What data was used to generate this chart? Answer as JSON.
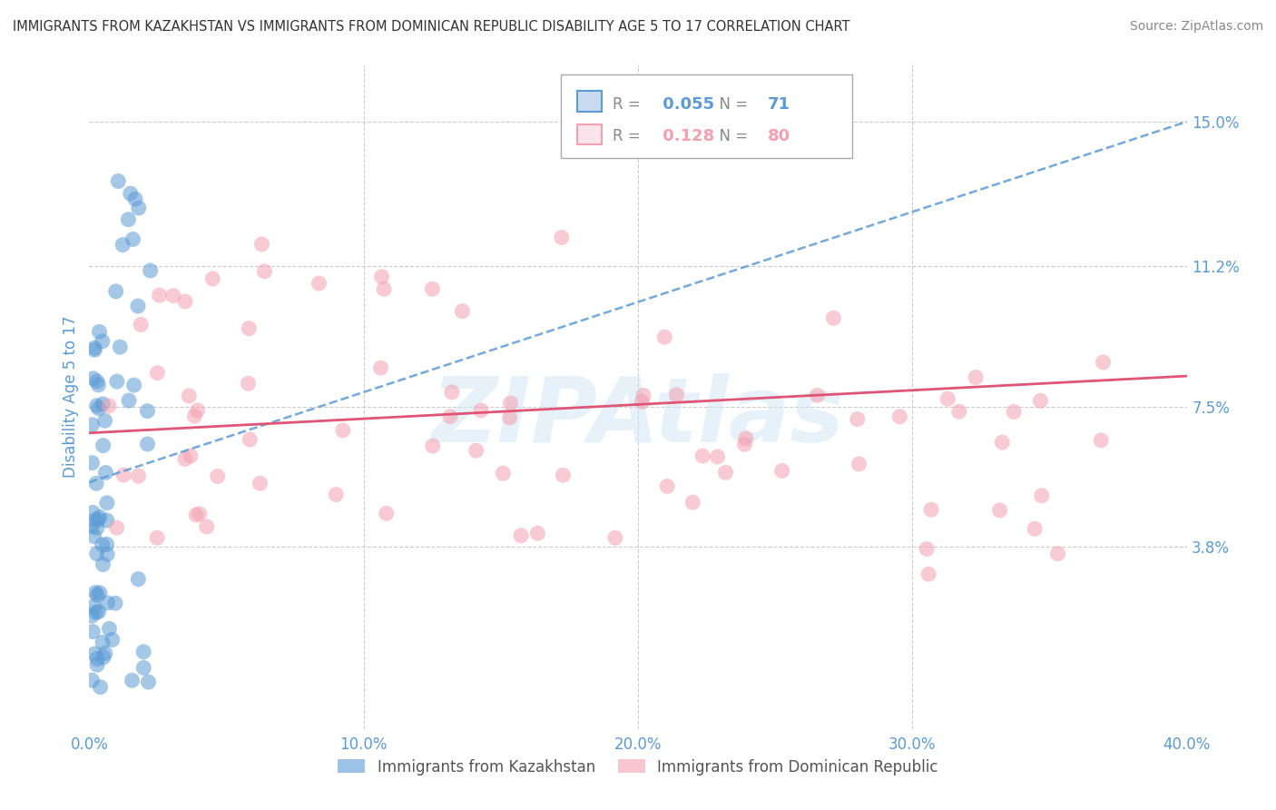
{
  "title": "IMMIGRANTS FROM KAZAKHSTAN VS IMMIGRANTS FROM DOMINICAN REPUBLIC DISABILITY AGE 5 TO 17 CORRELATION CHART",
  "source": "Source: ZipAtlas.com",
  "ylabel": "Disability Age 5 to 17",
  "xlim": [
    0.0,
    0.4
  ],
  "ylim": [
    -0.01,
    0.165
  ],
  "xticks": [
    0.0,
    0.1,
    0.2,
    0.3,
    0.4
  ],
  "xticklabels": [
    "0.0%",
    "10.0%",
    "20.0%",
    "30.0%",
    "40.0%"
  ],
  "yticks": [
    0.038,
    0.075,
    0.112,
    0.15
  ],
  "yticklabels": [
    "3.8%",
    "7.5%",
    "11.2%",
    "15.0%"
  ],
  "kaz_R": 0.055,
  "kaz_N": 71,
  "dom_R": 0.128,
  "dom_N": 80,
  "kaz_color": "#5b9bd5",
  "dom_color": "#f4a0b0",
  "kaz_line_color": "#5b9bd5",
  "dom_line_color": "#e05575",
  "legend_label_kaz": "Immigrants from Kazakhstan",
  "legend_label_dom": "Immigrants from Dominican Republic",
  "watermark": "ZIPAtlas",
  "background_color": "#ffffff",
  "grid_color": "#cccccc",
  "axis_label_color": "#5b9bd5",
  "tick_color": "#5b9bd5"
}
